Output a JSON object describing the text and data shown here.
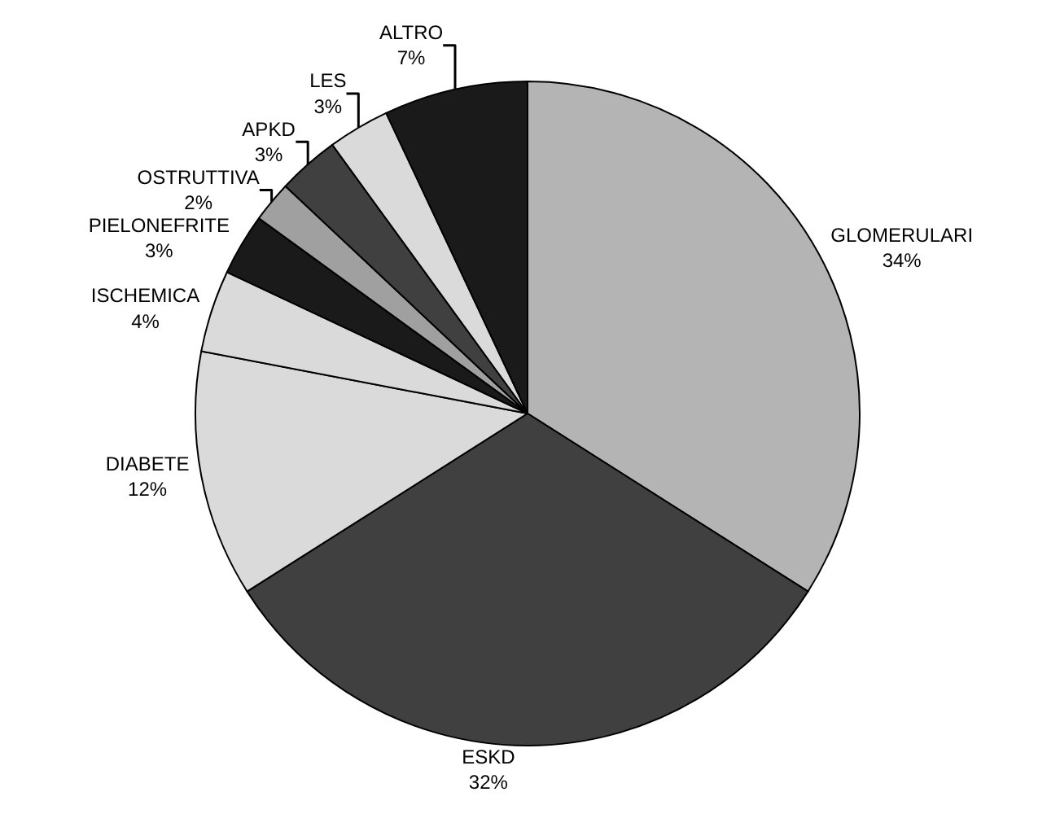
{
  "chart_data": {
    "type": "pie",
    "categories": [
      "GLOMERULARI",
      "ESKD",
      "DIABETE",
      "ISCHEMICA",
      "PIELONEFRITE",
      "OSTRUTTIVA",
      "APKD",
      "LES",
      "ALTRO"
    ],
    "values": [
      34,
      32,
      12,
      4,
      3,
      2,
      3,
      3,
      7
    ],
    "value_labels": [
      "34%",
      "32%",
      "12%",
      "4%",
      "3%",
      "2%",
      "3%",
      "3%",
      "7%"
    ],
    "colors": [
      "#b4b4b4",
      "#404040",
      "#dadada",
      "#dadada",
      "#1a1a1a",
      "#a0a0a0",
      "#404040",
      "#dadada",
      "#1a1a1a"
    ],
    "legend": false
  }
}
